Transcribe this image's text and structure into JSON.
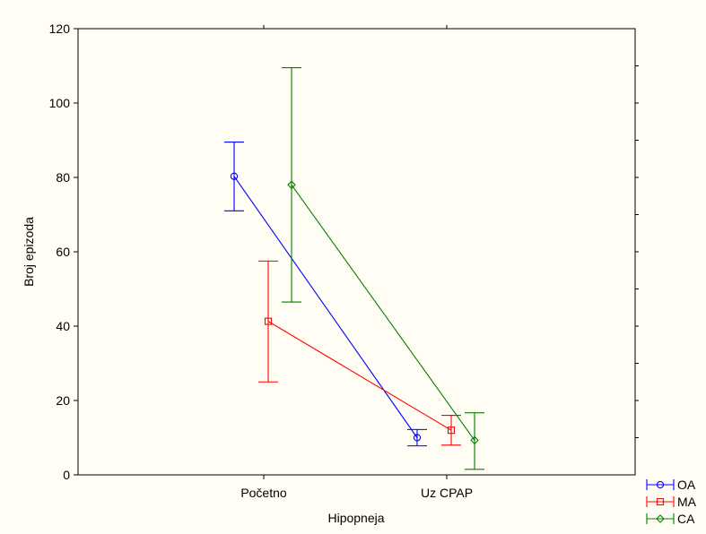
{
  "chart_data": {
    "type": "line",
    "xlabel": "Hipopneja",
    "ylabel": "Broj epizoda",
    "categories": [
      "Početno",
      "Uz CPAP"
    ],
    "ylim": [
      0,
      120
    ],
    "yticks": [
      0,
      20,
      40,
      60,
      80,
      100,
      120
    ],
    "grid": false,
    "legend_position": "bottom-right",
    "series": [
      {
        "name": "OA",
        "color": "#0000ff",
        "marker": "circle",
        "values": [
          80.3,
          10.0
        ],
        "lower": [
          71.0,
          7.8
        ],
        "upper": [
          89.5,
          12.2
        ]
      },
      {
        "name": "MA",
        "color": "#ff0000",
        "marker": "square",
        "values": [
          41.3,
          12.0
        ],
        "lower": [
          25.0,
          8.0
        ],
        "upper": [
          57.5,
          16.0
        ]
      },
      {
        "name": "CA",
        "color": "#008000",
        "marker": "diamond",
        "values": [
          78.0,
          9.3
        ],
        "lower": [
          46.5,
          1.5
        ],
        "upper": [
          109.5,
          16.7
        ]
      }
    ]
  }
}
